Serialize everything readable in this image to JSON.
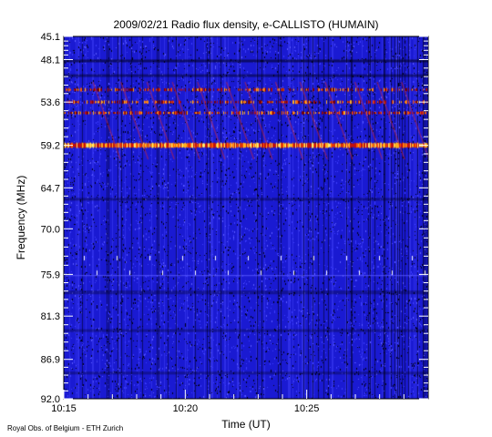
{
  "chart_data": {
    "type": "heatmap",
    "title": "2009/02/21  Radio flux density, e-CALLISTO (HUMAIN)",
    "xlabel": "Time (UT)",
    "ylabel": "Frequency (MHz)",
    "x_ticks": [
      "10:15",
      "10:20",
      "10:25"
    ],
    "x_tick_minutes": [
      0,
      5,
      10
    ],
    "xlim_minutes": [
      0,
      15
    ],
    "y_ticks": [
      "45.1",
      "48.1",
      "53.6",
      "59.2",
      "64.7",
      "70.0",
      "75.9",
      "81.3",
      "86.9",
      "92.0"
    ],
    "ylim": [
      45.1,
      92.0
    ],
    "colormap": [
      "#000000",
      "#1010c8",
      "#3a3aff",
      "#c01010",
      "#ff7a00",
      "#ffe060",
      "#ffffff"
    ],
    "bright_bands_mhz": [
      52.0,
      53.6,
      55.0,
      59.2
    ],
    "dim_line_mhz": 76.0
  },
  "credit": "Royal Obs. of Belgium - ETH Zurich"
}
